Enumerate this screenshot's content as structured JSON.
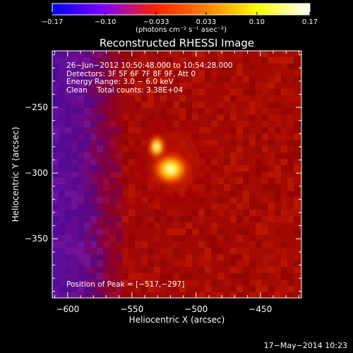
{
  "chart_data": {
    "type": "heatmap",
    "title": "Reconstructed RHESSI Image",
    "xlabel": "Heliocentric X (arcsec)",
    "ylabel": "Heliocentric Y (arcsec)",
    "xlim": [
      -612,
      -418
    ],
    "ylim": [
      -395,
      -207
    ],
    "x_ticks": [
      {
        "value": -600,
        "label": "−600"
      },
      {
        "value": -550,
        "label": "−550"
      },
      {
        "value": -500,
        "label": "−500"
      },
      {
        "value": -450,
        "label": "−450"
      }
    ],
    "y_ticks": [
      {
        "value": -250,
        "label": "−250"
      },
      {
        "value": -300,
        "label": "−300"
      },
      {
        "value": -350,
        "label": "−350"
      }
    ],
    "colorbar": {
      "range": [
        -0.17,
        0.17
      ],
      "ticks": [
        {
          "value": -0.17,
          "label": "−0.17"
        },
        {
          "value": -0.1,
          "label": "−0.10"
        },
        {
          "value": -0.033,
          "label": "−0.033"
        },
        {
          "value": 0.033,
          "label": "0.033"
        },
        {
          "value": 0.1,
          "label": "0.10"
        },
        {
          "value": 0.17,
          "label": "0.17"
        }
      ],
      "unit_label": "(photons cm⁻² s⁻¹ asec⁻²)",
      "colormap": [
        "#0000ff",
        "#8000ff",
        "#ff2000",
        "#ff8000",
        "#ffff00",
        "#ffffff"
      ]
    },
    "annotations": {
      "time_range": "26−Jun−2012 10:50:48.000 to 10:54:28.000",
      "detectors": "Detectors: 3F 5F 6F 7F 8F 9F, Att 0",
      "energy": "Energy Range: 3.0 − 6.0 keV",
      "clean": "Clean    Total counts: 3.38E+04",
      "peak": "Position of Peak = [−517,−297]"
    },
    "peak": {
      "x": -517,
      "y": -297
    },
    "footer_timestamp": "17−May−2014 10:23"
  }
}
